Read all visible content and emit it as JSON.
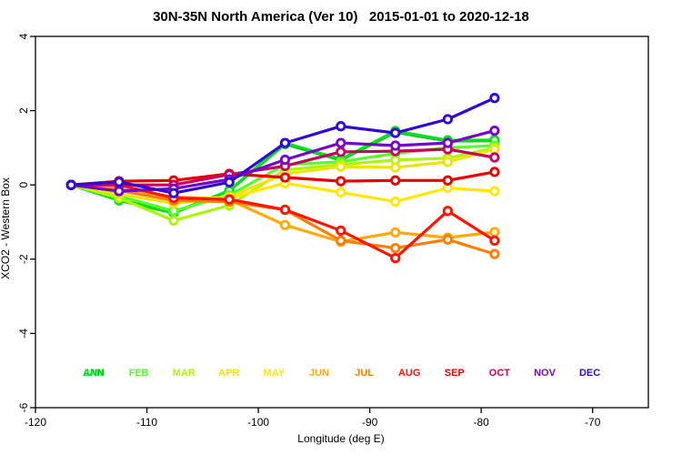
{
  "title": "30N-35N North America (Ver 10)   2015-01-01 to 2020-12-18",
  "chart_data": {
    "type": "line",
    "title": "30N-35N North America (Ver 10)   2015-01-01 to 2020-12-18",
    "xlabel": "Longitude (deg E)",
    "ylabel": "XCO2 - Western Box",
    "xlim": [
      -120,
      -65
    ],
    "ylim": [
      -6,
      4
    ],
    "xticks": [
      -120,
      -110,
      -100,
      -90,
      -80,
      -70
    ],
    "yticks": [
      -6,
      -4,
      -2,
      0,
      2,
      4
    ],
    "grid": false,
    "legend_position": "bottom-inside",
    "marker": "open-circle",
    "x": [
      -116.8,
      -112.5,
      -107.6,
      -102.6,
      -97.6,
      -92.6,
      -87.7,
      -83.0,
      -78.8
    ],
    "series": [
      {
        "name": "ANN",
        "color": "#03BE1A",
        "legend_slot": 0,
        "values": [
          0.0,
          -0.4,
          -0.74,
          -0.16,
          1.1,
          0.67,
          1.42,
          1.18,
          1.19
        ]
      },
      {
        "name": "JAN",
        "color": "#0ADF1E",
        "legend_slot": 0,
        "values": [
          0.0,
          -0.42,
          -0.76,
          -0.15,
          1.13,
          0.69,
          1.45,
          1.2,
          1.21
        ]
      },
      {
        "name": "FEB",
        "color": "#5AFA32",
        "legend_slot": 1,
        "values": [
          0.0,
          -0.3,
          -0.7,
          -0.28,
          0.55,
          0.62,
          0.85,
          1.0,
          1.06
        ]
      },
      {
        "name": "MAR",
        "color": "#ABF60C",
        "legend_slot": 2,
        "values": [
          0.0,
          -0.35,
          -0.96,
          -0.55,
          0.4,
          0.55,
          0.67,
          0.72,
          1.0
        ]
      },
      {
        "name": "APR",
        "color": "#EDE409",
        "legend_slot": 3,
        "values": [
          0.0,
          -0.25,
          -0.5,
          -0.32,
          0.3,
          0.49,
          0.47,
          0.62,
          0.96
        ]
      },
      {
        "name": "MAY",
        "color": "#FFE805",
        "legend_slot": 4,
        "values": [
          0.0,
          -0.15,
          -0.35,
          -0.35,
          0.05,
          -0.2,
          -0.45,
          -0.08,
          -0.17
        ]
      },
      {
        "name": "JUN",
        "color": "#FFAA05",
        "legend_slot": 5,
        "values": [
          0.0,
          -0.1,
          -0.32,
          -0.4,
          -1.08,
          -1.53,
          -1.28,
          -1.42,
          -1.27
        ]
      },
      {
        "name": "JUL",
        "color": "#FF7E03",
        "legend_slot": 6,
        "values": [
          0.0,
          -0.15,
          -0.42,
          -0.45,
          -0.67,
          -1.5,
          -1.7,
          -1.47,
          -1.86
        ]
      },
      {
        "name": "AUG",
        "color": "#FF1503",
        "legend_slot": 7,
        "values": [
          0.0,
          0.0,
          -0.35,
          -0.39,
          -0.67,
          -1.23,
          -1.97,
          -0.7,
          -1.5
        ]
      },
      {
        "name": "SEP",
        "color": "#EB0000",
        "legend_slot": 8,
        "values": [
          0.0,
          0.1,
          0.12,
          0.3,
          0.2,
          0.1,
          0.12,
          0.12,
          0.35
        ]
      },
      {
        "name": "OCT",
        "color": "#C4045E",
        "legend_slot": 9,
        "values": [
          0.0,
          0.0,
          0.0,
          0.28,
          0.51,
          0.89,
          0.91,
          0.96,
          0.74
        ]
      },
      {
        "name": "NOV",
        "color": "#7605C8",
        "legend_slot": 10,
        "values": [
          0.0,
          -0.17,
          -0.1,
          0.15,
          0.68,
          1.13,
          1.06,
          1.13,
          1.46
        ]
      },
      {
        "name": "DEC",
        "color": "#3209D2",
        "legend_slot": 11,
        "values": [
          0.0,
          0.08,
          -0.22,
          0.07,
          1.13,
          1.58,
          1.4,
          1.77,
          2.34
        ]
      }
    ]
  }
}
